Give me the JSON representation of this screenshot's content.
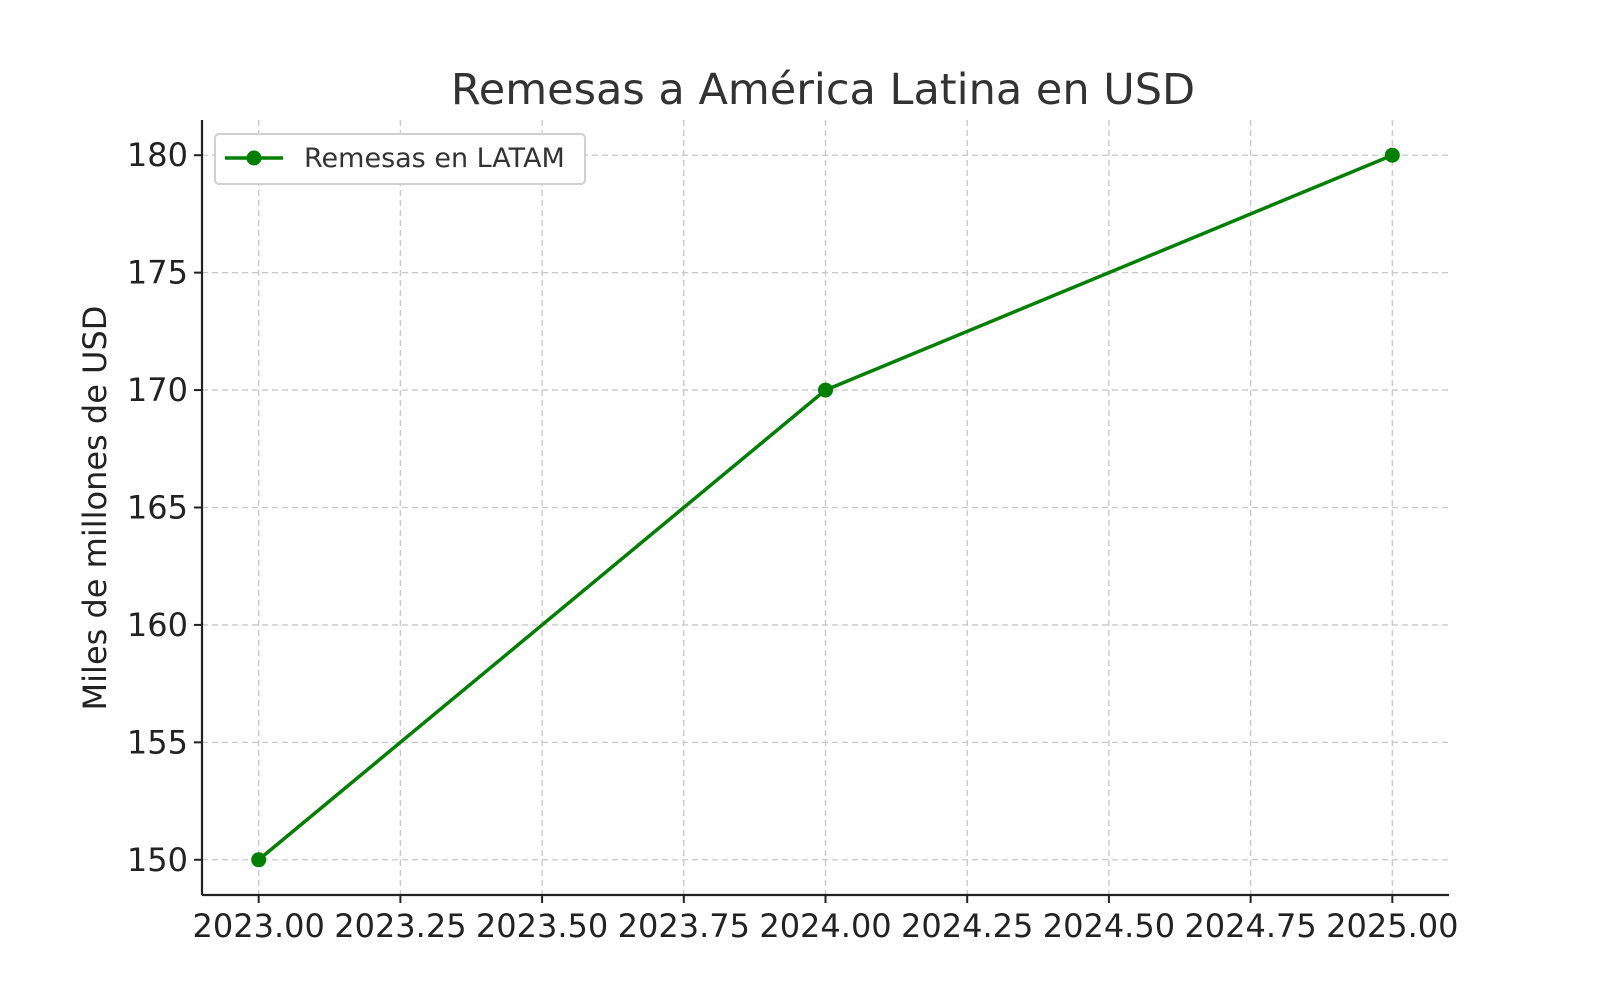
{
  "chart_data": {
    "type": "line",
    "title": "Remesas a América Latina en USD",
    "xlabel": "",
    "ylabel": "Miles de millones de USD",
    "x": [
      2023,
      2024,
      2025
    ],
    "series": [
      {
        "name": "Remesas en LATAM",
        "values": [
          150,
          170,
          180
        ],
        "color": "#008000",
        "marker": "circle"
      }
    ],
    "xlim": [
      2022.9,
      2025.1
    ],
    "ylim": [
      148.5,
      181.5
    ],
    "xticks": [
      2023.0,
      2023.25,
      2023.5,
      2023.75,
      2024.0,
      2024.25,
      2024.5,
      2024.75,
      2025.0
    ],
    "xtick_labels": [
      "2023.00",
      "2023.25",
      "2023.50",
      "2023.75",
      "2024.00",
      "2024.25",
      "2024.50",
      "2024.75",
      "2025.00"
    ],
    "yticks": [
      150,
      155,
      160,
      165,
      170,
      175,
      180
    ],
    "ytick_labels": [
      "150",
      "155",
      "160",
      "165",
      "170",
      "175",
      "180"
    ],
    "grid": true,
    "grid_style": "dashed",
    "legend_position": "upper-left"
  }
}
